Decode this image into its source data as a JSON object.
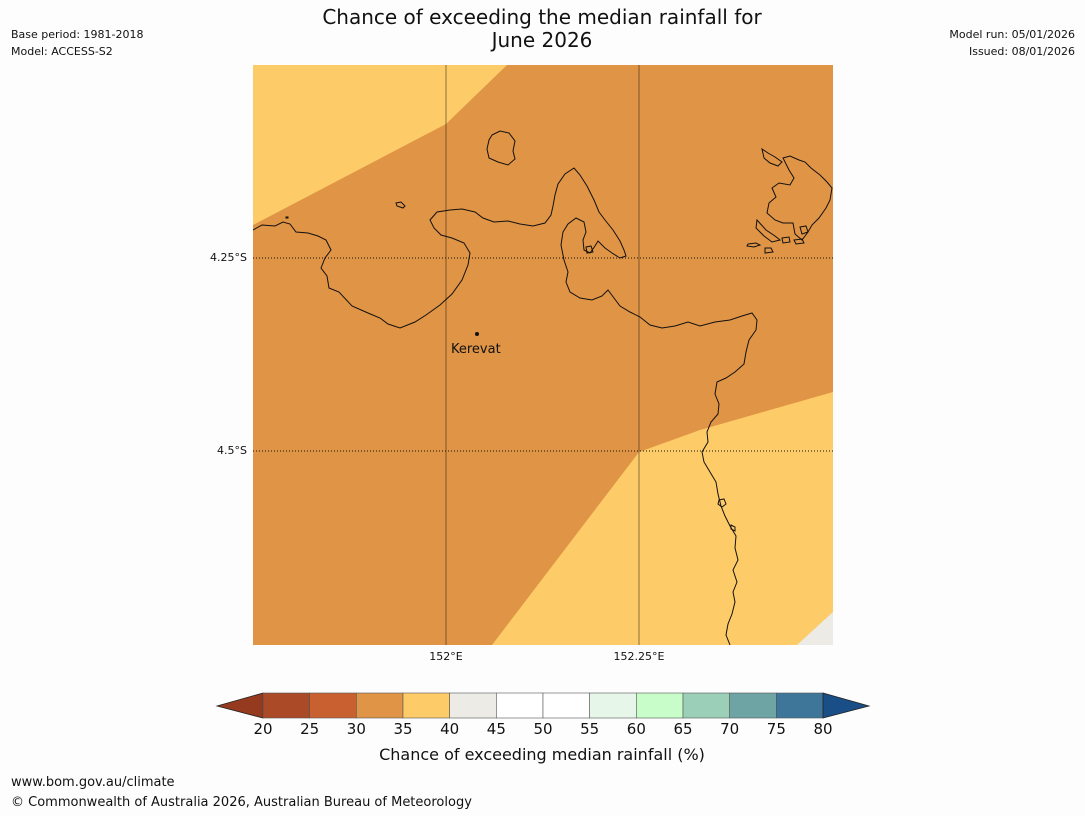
{
  "title": {
    "line1": "Chance of exceeding the median rainfall for",
    "line2": "June 2026"
  },
  "meta_left": {
    "base_period": "Base period: 1981-2018",
    "model": "Model: ACCESS-S2"
  },
  "meta_right": {
    "model_run": "Model run: 05/01/2026",
    "issued": "Issued: 08/01/2026"
  },
  "map": {
    "lat_labels": [
      "4.25°S",
      "4.5°S"
    ],
    "lon_labels": [
      "152°E",
      "152.25°E"
    ],
    "place_name": "Kerevat",
    "category_colors": {
      "30-35": "#e09445",
      "35-40": "#fdcb68",
      "40-45": "#ecebe6"
    }
  },
  "colorbar": {
    "ticks": [
      "20",
      "25",
      "30",
      "35",
      "40",
      "45",
      "50",
      "55",
      "60",
      "65",
      "70",
      "75",
      "80"
    ],
    "colors": [
      "#ab4a27",
      "#c8612f",
      "#e09445",
      "#fdcb68",
      "#ecebe6",
      "#ffffff",
      "#ffffff",
      "#e6f6e8",
      "#c8fcc8",
      "#9ccfb8",
      "#6fa4a4",
      "#3d7698"
    ],
    "under_color": "#95391f",
    "over_color": "#1a4e86",
    "label": "Chance of exceeding median rainfall (%)"
  },
  "footer": {
    "url": "www.bom.gov.au/climate",
    "copyright": "© Commonwealth of Australia 2026, Australian Bureau of Meteorology"
  }
}
